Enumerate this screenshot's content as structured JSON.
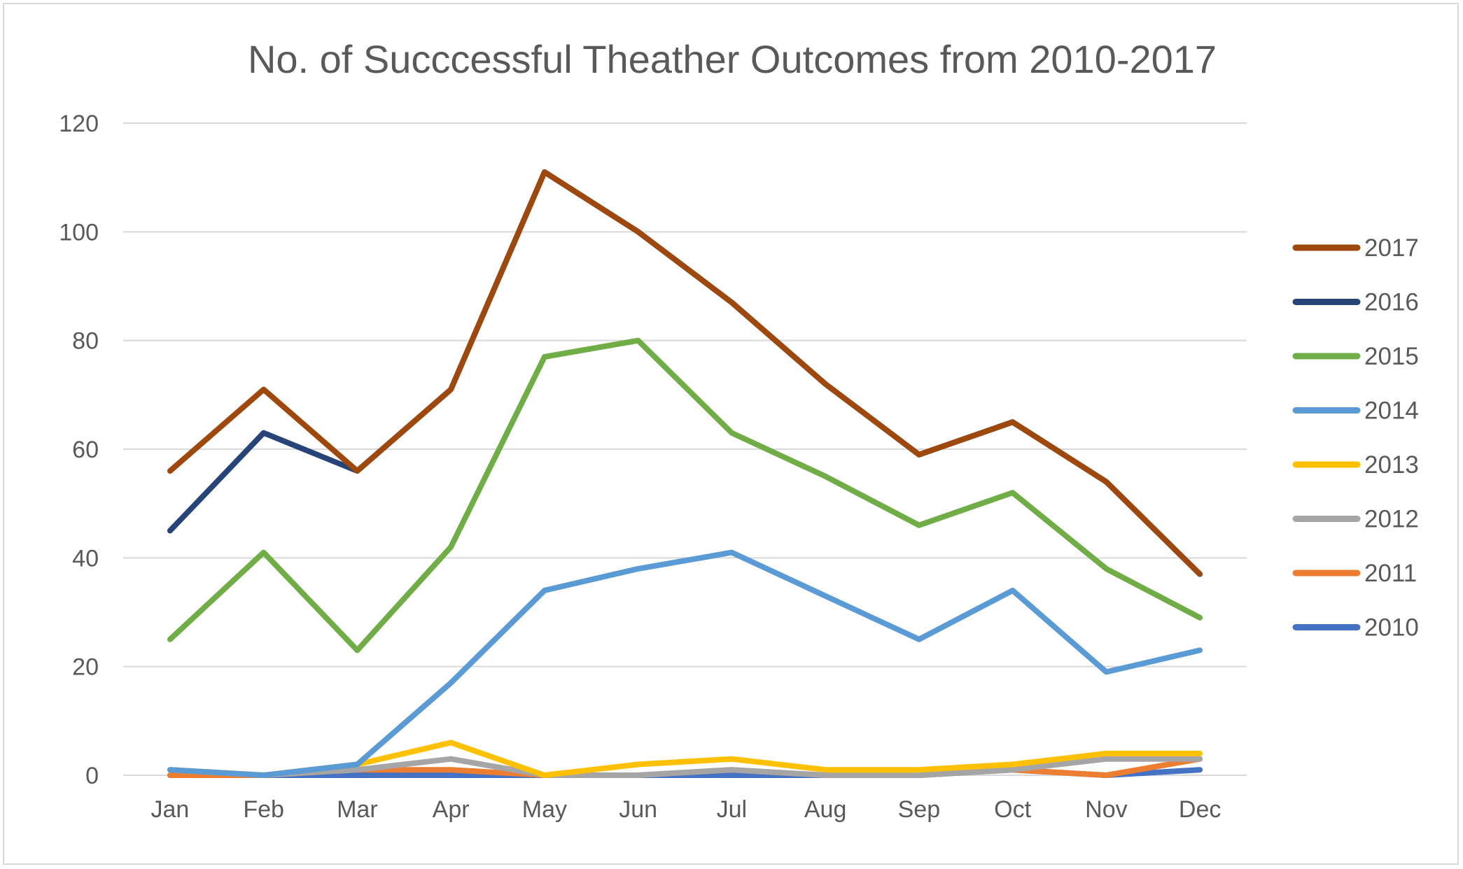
{
  "chart_data": {
    "type": "line",
    "title": "No. of Succcessful Theather Outcomes from 2010-2017",
    "xlabel": "",
    "ylabel": "",
    "categories": [
      "Jan",
      "Feb",
      "Mar",
      "Apr",
      "May",
      "Jun",
      "Jul",
      "Aug",
      "Sep",
      "Oct",
      "Nov",
      "Dec"
    ],
    "ylim": [
      0,
      120
    ],
    "yticks": [
      "0",
      "20",
      "40",
      "60",
      "80",
      "100",
      "120"
    ],
    "grid": true,
    "legend_position": "right",
    "series": [
      {
        "name": "2010",
        "color": "#4472c4",
        "values": [
          0,
          0,
          0,
          0,
          0,
          0,
          0,
          0,
          0,
          1,
          0,
          1
        ]
      },
      {
        "name": "2011",
        "color": "#ed7d31",
        "values": [
          0,
          0,
          1,
          1,
          0,
          0,
          1,
          0,
          0,
          1,
          0,
          3
        ]
      },
      {
        "name": "2012",
        "color": "#a5a5a5",
        "values": [
          1,
          0,
          1,
          3,
          0,
          0,
          1,
          0,
          0,
          1,
          3,
          3
        ]
      },
      {
        "name": "2013",
        "color": "#ffc000",
        "values": [
          1,
          0,
          2,
          6,
          0,
          2,
          3,
          1,
          1,
          2,
          4,
          4
        ]
      },
      {
        "name": "2014",
        "color": "#5b9bd5",
        "values": [
          1,
          0,
          2,
          17,
          34,
          38,
          41,
          33,
          25,
          34,
          19,
          23
        ]
      },
      {
        "name": "2015",
        "color": "#70ad47",
        "values": [
          25,
          41,
          23,
          42,
          77,
          80,
          63,
          55,
          46,
          52,
          38,
          29
        ]
      },
      {
        "name": "2016",
        "color": "#264478",
        "values": [
          45,
          63,
          56,
          71,
          111,
          100,
          87,
          72,
          59,
          65,
          54,
          37
        ]
      },
      {
        "name": "2017",
        "color": "#9e480e",
        "values": [
          56,
          71,
          56,
          71,
          111,
          100,
          87,
          72,
          59,
          65,
          54,
          37
        ]
      }
    ]
  }
}
